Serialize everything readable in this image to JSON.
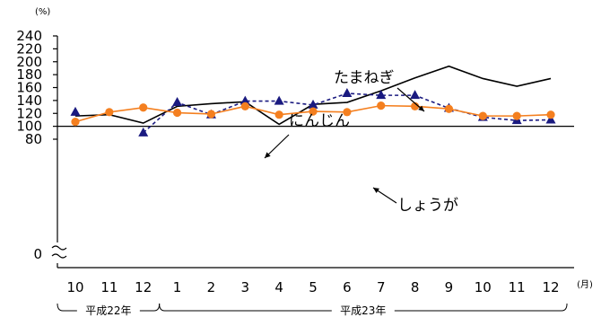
{
  "chart_data": {
    "type": "line",
    "y_unit": "(%)",
    "x_unit": "(月)",
    "yticks": [
      "0",
      "80",
      "100",
      "120",
      "140",
      "160",
      "180",
      "200",
      "220",
      "240"
    ],
    "ylim": [
      80,
      240
    ],
    "y_axis_break": true,
    "baseline": 100,
    "categories": [
      "10",
      "11",
      "12",
      "1",
      "2",
      "3",
      "4",
      "5",
      "6",
      "7",
      "8",
      "9",
      "10",
      "11",
      "12"
    ],
    "eras": [
      {
        "label": "平成22年",
        "from": 0,
        "to": 2
      },
      {
        "label": "平成23年",
        "from": 3,
        "to": 14
      }
    ],
    "series": [
      {
        "name": "たまねぎ",
        "color": "#000000",
        "style": "solid",
        "marker": "none",
        "values": [
          116,
          118,
          105,
          131,
          135,
          138,
          103,
          134,
          137,
          155,
          175,
          193,
          174,
          162,
          174
        ]
      },
      {
        "name": "にんじん",
        "color": "#1a1a80",
        "style": "dashed",
        "marker": "triangle",
        "values": [
          122,
          null,
          90,
          137,
          118,
          139,
          139,
          133,
          151,
          148,
          148,
          128,
          114,
          109,
          110
        ]
      },
      {
        "name": "しょうが",
        "color": "#f47f1f",
        "style": "solid",
        "marker": "circle",
        "values": [
          107,
          122,
          129,
          121,
          119,
          131,
          118,
          123,
          122,
          132,
          131,
          127,
          116,
          116,
          118
        ]
      }
    ]
  }
}
